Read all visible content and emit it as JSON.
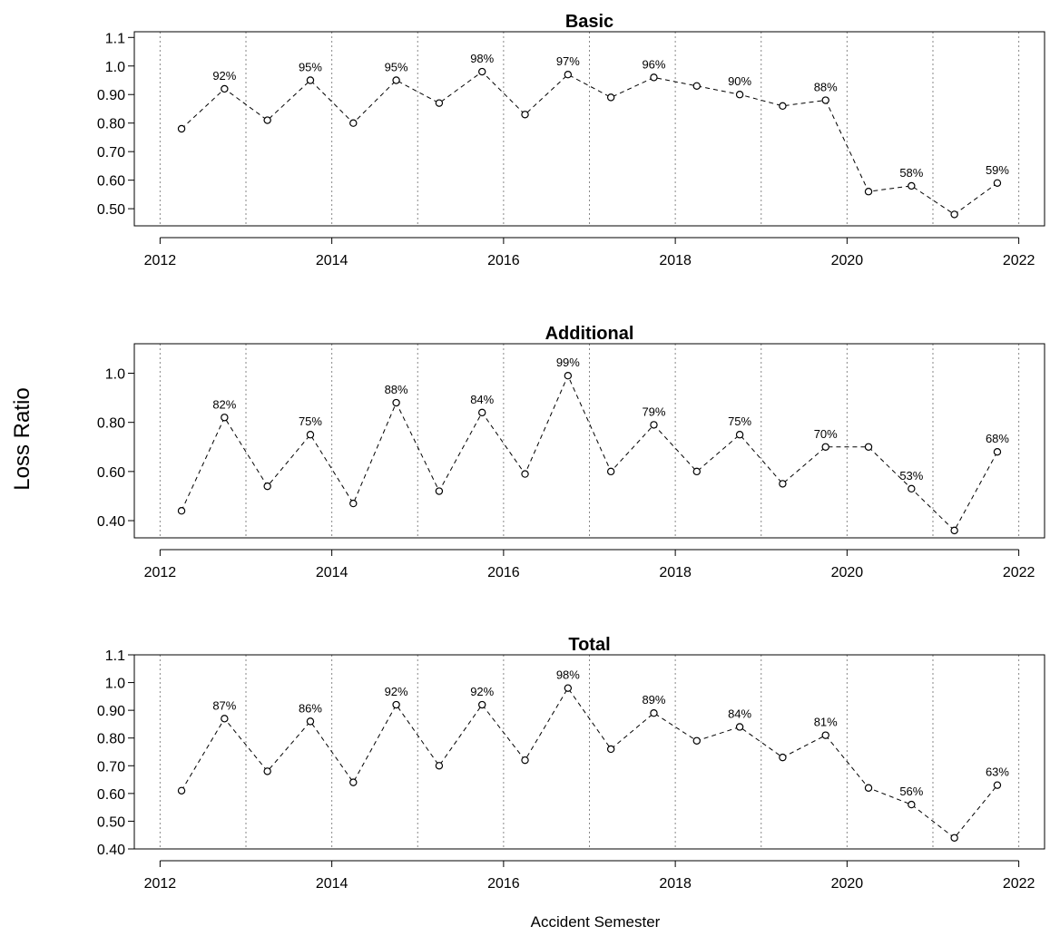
{
  "ylabel": "Loss Ratio",
  "xlabel": "Accident Semester",
  "chart_data": [
    {
      "type": "line",
      "title": "Basic",
      "x": [
        2012.25,
        2012.75,
        2013.25,
        2013.75,
        2014.25,
        2014.75,
        2015.25,
        2015.75,
        2016.25,
        2016.75,
        2017.25,
        2017.75,
        2018.25,
        2018.75,
        2019.25,
        2019.75,
        2020.25,
        2020.75,
        2021.25,
        2021.75
      ],
      "values": [
        0.78,
        0.92,
        0.81,
        0.95,
        0.8,
        0.95,
        0.87,
        0.98,
        0.83,
        0.97,
        0.89,
        0.96,
        0.93,
        0.9,
        0.86,
        0.88,
        0.56,
        0.58,
        0.48,
        0.59
      ],
      "point_labels": [
        "",
        "92%",
        "",
        "95%",
        "",
        "95%",
        "",
        "98%",
        "",
        "97%",
        "",
        "96%",
        "",
        "90%",
        "",
        "88%",
        "",
        "58%",
        "",
        "59%"
      ],
      "xticks": [
        "2012",
        "2014",
        "2016",
        "2018",
        "2020",
        "2022"
      ],
      "yticks": [
        "0.50",
        "0.60",
        "0.70",
        "0.80",
        "0.90",
        "1.0",
        "1.1"
      ],
      "ytick_values": [
        0.5,
        0.6,
        0.7,
        0.8,
        0.9,
        1.0,
        1.1
      ],
      "ylim": [
        0.44,
        1.12
      ],
      "xlim": [
        2011.7,
        2022.3
      ],
      "year_gridlines": [
        2012,
        2013,
        2014,
        2015,
        2016,
        2017,
        2018,
        2019,
        2020,
        2021,
        2022
      ],
      "grid": "vertical-dotted",
      "line_style": "dashed",
      "marker": "open-circle"
    },
    {
      "type": "line",
      "title": "Additional",
      "x": [
        2012.25,
        2012.75,
        2013.25,
        2013.75,
        2014.25,
        2014.75,
        2015.25,
        2015.75,
        2016.25,
        2016.75,
        2017.25,
        2017.75,
        2018.25,
        2018.75,
        2019.25,
        2019.75,
        2020.25,
        2020.75,
        2021.25,
        2021.75
      ],
      "values": [
        0.44,
        0.82,
        0.54,
        0.75,
        0.47,
        0.88,
        0.52,
        0.84,
        0.59,
        0.99,
        0.6,
        0.79,
        0.6,
        0.75,
        0.55,
        0.7,
        0.7,
        0.53,
        0.36,
        0.68
      ],
      "point_labels": [
        "",
        "82%",
        "",
        "75%",
        "",
        "88%",
        "",
        "84%",
        "",
        "99%",
        "",
        "79%",
        "",
        "75%",
        "",
        "70%",
        "",
        "53%",
        "",
        "68%"
      ],
      "xticks": [
        "2012",
        "2014",
        "2016",
        "2018",
        "2020",
        "2022"
      ],
      "yticks": [
        "0.40",
        "0.60",
        "0.80",
        "1.0"
      ],
      "ytick_values": [
        0.4,
        0.6,
        0.8,
        1.0
      ],
      "ylim": [
        0.33,
        1.12
      ],
      "xlim": [
        2011.7,
        2022.3
      ],
      "year_gridlines": [
        2012,
        2013,
        2014,
        2015,
        2016,
        2017,
        2018,
        2019,
        2020,
        2021,
        2022
      ],
      "grid": "vertical-dotted",
      "line_style": "dashed",
      "marker": "open-circle"
    },
    {
      "type": "line",
      "title": "Total",
      "x": [
        2012.25,
        2012.75,
        2013.25,
        2013.75,
        2014.25,
        2014.75,
        2015.25,
        2015.75,
        2016.25,
        2016.75,
        2017.25,
        2017.75,
        2018.25,
        2018.75,
        2019.25,
        2019.75,
        2020.25,
        2020.75,
        2021.25,
        2021.75
      ],
      "values": [
        0.61,
        0.87,
        0.68,
        0.86,
        0.64,
        0.92,
        0.7,
        0.92,
        0.72,
        0.98,
        0.76,
        0.89,
        0.79,
        0.84,
        0.73,
        0.81,
        0.62,
        0.56,
        0.44,
        0.63
      ],
      "point_labels": [
        "",
        "87%",
        "",
        "86%",
        "",
        "92%",
        "",
        "92%",
        "",
        "98%",
        "",
        "89%",
        "",
        "84%",
        "",
        "81%",
        "",
        "56%",
        "",
        "63%"
      ],
      "xticks": [
        "2012",
        "2014",
        "2016",
        "2018",
        "2020",
        "2022"
      ],
      "yticks": [
        "0.40",
        "0.50",
        "0.60",
        "0.70",
        "0.80",
        "0.90",
        "1.0",
        "1.1"
      ],
      "ytick_values": [
        0.4,
        0.5,
        0.6,
        0.7,
        0.8,
        0.9,
        1.0,
        1.1
      ],
      "ylim": [
        0.4,
        1.1
      ],
      "xlim": [
        2011.7,
        2022.3
      ],
      "year_gridlines": [
        2012,
        2013,
        2014,
        2015,
        2016,
        2017,
        2018,
        2019,
        2020,
        2021,
        2022
      ],
      "grid": "vertical-dotted",
      "line_style": "dashed",
      "marker": "open-circle"
    }
  ]
}
